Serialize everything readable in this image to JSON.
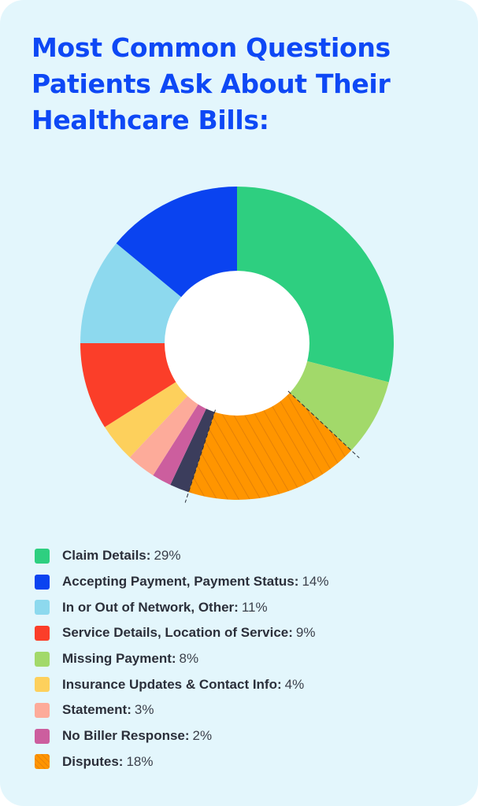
{
  "title_lines": [
    "Most Common Questions",
    "Patients Ask About Their",
    "Healthcare Bills:"
  ],
  "chart_data": {
    "type": "pie",
    "title": "Most Common Questions Patients Ask About Their Healthcare Bills:",
    "donut": true,
    "slices": [
      {
        "label": "Claim Details",
        "value": 29,
        "display": "29%",
        "color": "#2ecf80",
        "hatched": false
      },
      {
        "label": "Missing Payment",
        "value": 8,
        "display": "8%",
        "color": "#a2d96a",
        "hatched": false
      },
      {
        "label": "Disputes",
        "value": 18,
        "display": "18%",
        "color": "#ff9500",
        "hatched": true
      },
      {
        "label": "",
        "value": 2,
        "display": "",
        "color": "#3b3d5c",
        "hatched": false
      },
      {
        "label": "No Biller Response",
        "value": 2,
        "display": "2%",
        "color": "#cc5e9e",
        "hatched": false
      },
      {
        "label": "Statement",
        "value": 3,
        "display": "3%",
        "color": "#fdab9a",
        "hatched": false
      },
      {
        "label": "Insurance Updates & Contact Info",
        "value": 4,
        "display": "4%",
        "color": "#fdd05c",
        "hatched": false
      },
      {
        "label": "Service Details, Location of Service",
        "value": 9,
        "display": "9%",
        "color": "#fb3e29",
        "hatched": false
      },
      {
        "label": "In or Out of Network, Other",
        "value": 11,
        "display": "11%",
        "color": "#8dd9ee",
        "hatched": false
      },
      {
        "label": "Accepting Payment, Payment Status",
        "value": 14,
        "display": "14%",
        "color": "#0a43f0",
        "hatched": false
      }
    ],
    "legend_order": [
      "Claim Details",
      "Accepting Payment, Payment Status",
      "In or Out of Network, Other",
      "Service Details, Location of Service",
      "Missing Payment",
      "Insurance Updates & Contact Info",
      "Statement",
      "No Biller Response",
      "Disputes"
    ],
    "legend_placement": "bottom"
  }
}
